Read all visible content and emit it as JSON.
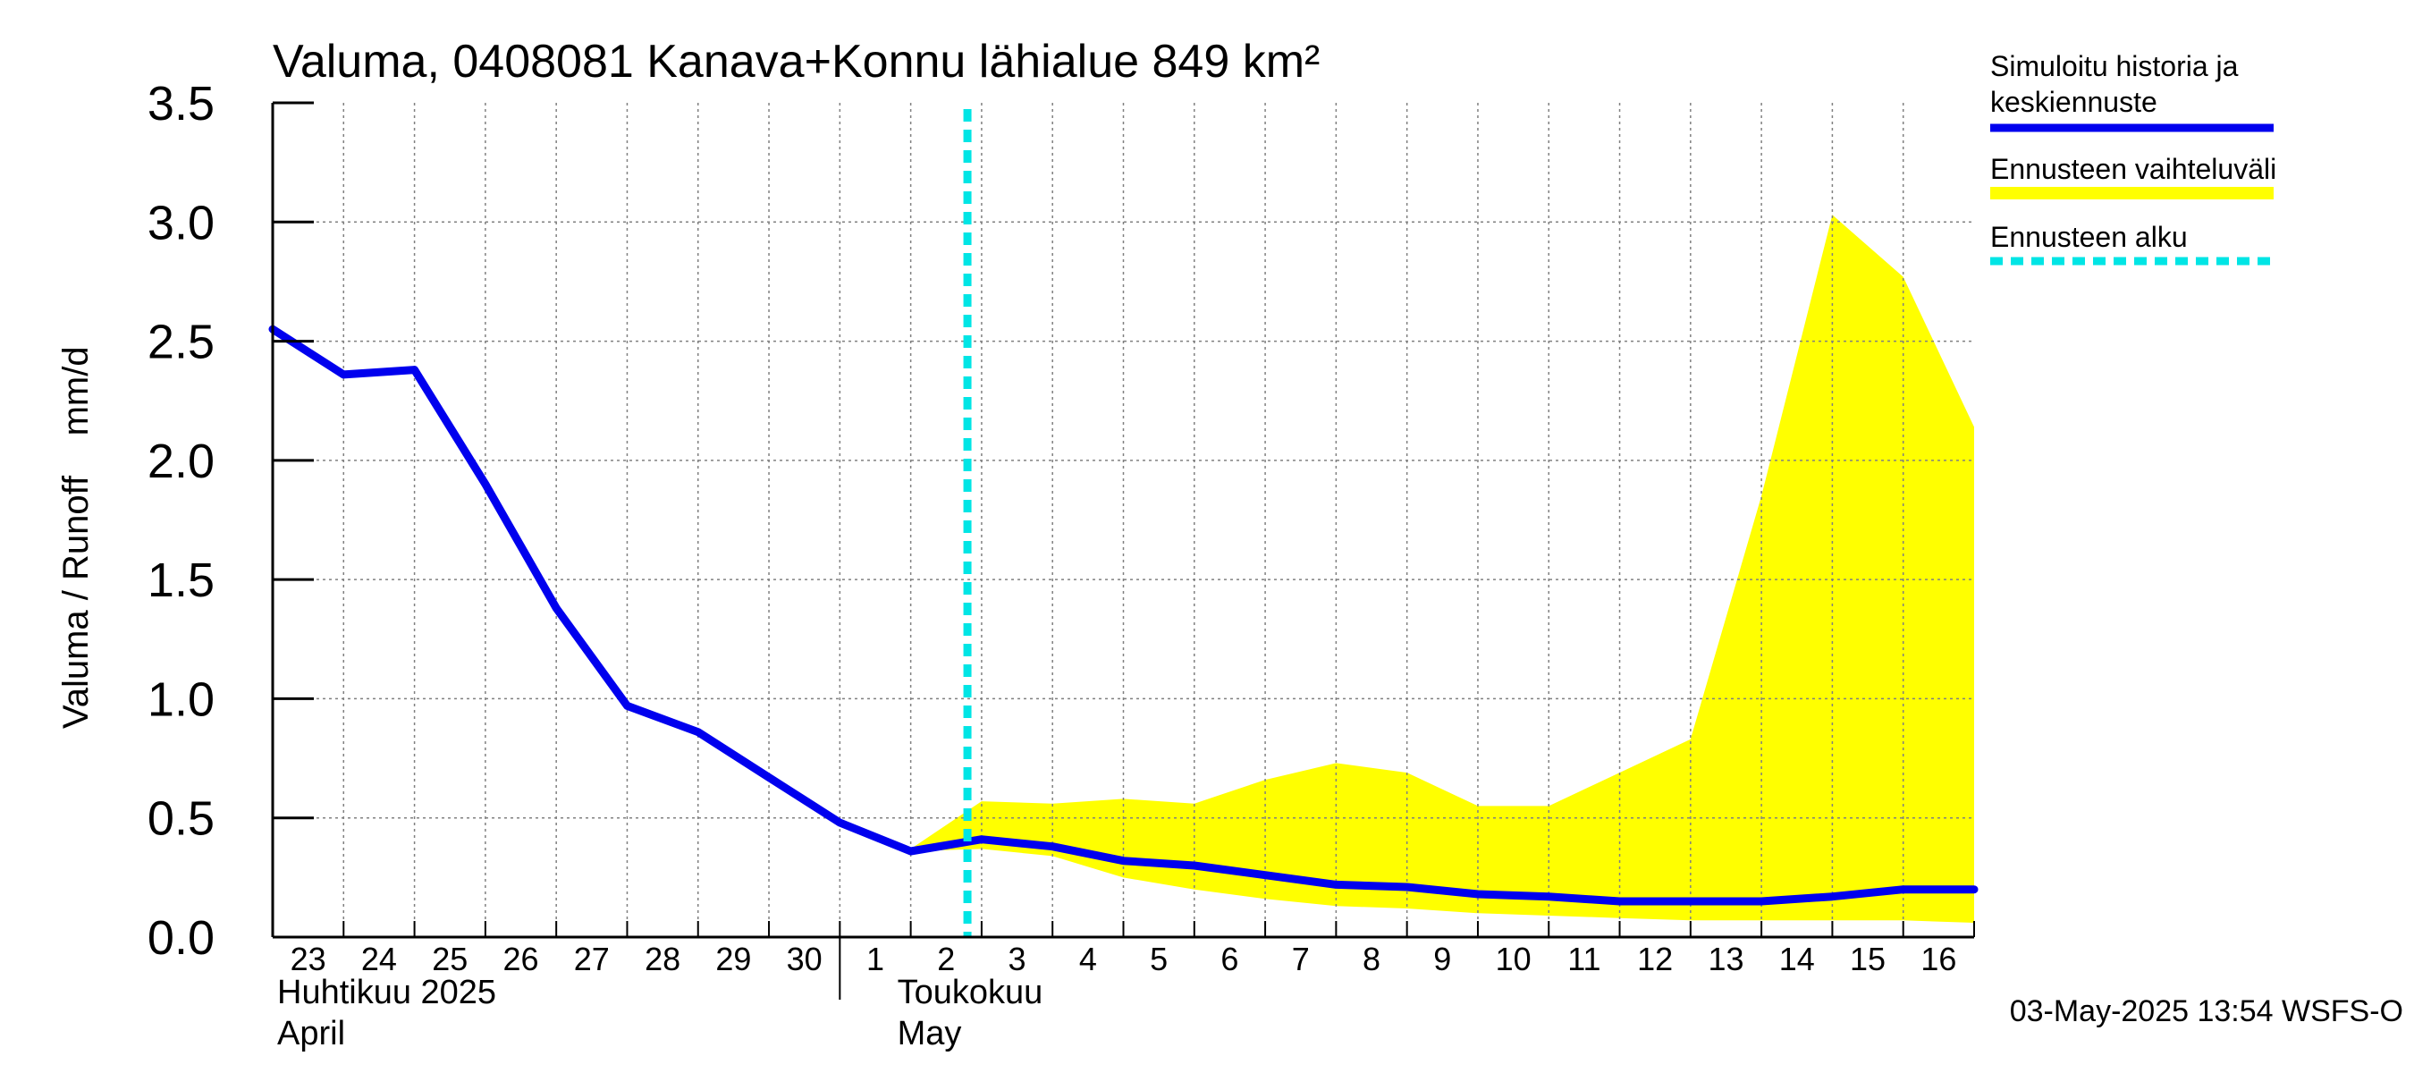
{
  "chart_data": {
    "type": "line",
    "title": "Valuma, 0408081 Kanava+Konnu lähialue 849 km²",
    "ylabel": "Valuma / Runoff    mm/d",
    "ylim": [
      0,
      3.5
    ],
    "yticks": [
      "0.0",
      "0.5",
      "1.0",
      "1.5",
      "2.0",
      "2.5",
      "3.0",
      "3.5"
    ],
    "xlim": [
      "2025-04-23",
      "2025-05-17"
    ],
    "x_tick_labels": [
      "23",
      "24",
      "25",
      "26",
      "27",
      "28",
      "29",
      "30",
      "1",
      "2",
      "3",
      "4",
      "5",
      "6",
      "7",
      "8",
      "9",
      "10",
      "11",
      "12",
      "13",
      "14",
      "15",
      "16"
    ],
    "month_labels": [
      {
        "fi": "Huhtikuu  2025",
        "en": "April"
      },
      {
        "fi": "Toukokuu",
        "en": "May"
      }
    ],
    "grid": true,
    "legend_position": "right",
    "forecast_start": "2025-05-03",
    "series": [
      {
        "name": "Simuloitu historia ja keskiennuste",
        "type": "line",
        "color": "#0000ee",
        "x": [
          "2025-04-23",
          "2025-04-24",
          "2025-04-25",
          "2025-04-26",
          "2025-04-27",
          "2025-04-28",
          "2025-04-29",
          "2025-04-30",
          "2025-05-01",
          "2025-05-02",
          "2025-05-03",
          "2025-05-04",
          "2025-05-05",
          "2025-05-06",
          "2025-05-07",
          "2025-05-08",
          "2025-05-09",
          "2025-05-10",
          "2025-05-11",
          "2025-05-12",
          "2025-05-13",
          "2025-05-14",
          "2025-05-15",
          "2025-05-16",
          "2025-05-17"
        ],
        "values": [
          2.55,
          2.36,
          2.38,
          1.9,
          1.38,
          0.97,
          0.86,
          0.67,
          0.48,
          0.36,
          0.41,
          0.38,
          0.32,
          0.3,
          0.26,
          0.22,
          0.21,
          0.18,
          0.17,
          0.15,
          0.15,
          0.15,
          0.17,
          0.2,
          0.2
        ]
      },
      {
        "name": "Ennusteen vaihteluväli",
        "type": "band",
        "color": "#ffff00",
        "x": [
          "2025-05-02",
          "2025-05-03",
          "2025-05-04",
          "2025-05-05",
          "2025-05-06",
          "2025-05-07",
          "2025-05-08",
          "2025-05-09",
          "2025-05-10",
          "2025-05-11",
          "2025-05-12",
          "2025-05-13",
          "2025-05-14",
          "2025-05-15",
          "2025-05-16",
          "2025-05-17"
        ],
        "upper": [
          0.37,
          0.57,
          0.56,
          0.58,
          0.56,
          0.66,
          0.73,
          0.69,
          0.55,
          0.55,
          0.69,
          0.83,
          1.85,
          3.03,
          2.77,
          2.14
        ],
        "lower": [
          0.36,
          0.37,
          0.34,
          0.25,
          0.2,
          0.16,
          0.13,
          0.12,
          0.1,
          0.09,
          0.08,
          0.07,
          0.07,
          0.07,
          0.07,
          0.06
        ]
      },
      {
        "name": "Ennusteen alku",
        "type": "vline",
        "color": "#00e5e5"
      }
    ],
    "legend": [
      {
        "label": "Simuloitu historia ja keskiennuste",
        "color": "#0000ee",
        "style": "solid"
      },
      {
        "label": "Ennusteen vaihteluväli",
        "color": "#ffff00",
        "style": "solid"
      },
      {
        "label": "Ennusteen alku",
        "color": "#00e5e5",
        "style": "dashed"
      }
    ],
    "footer": "03-May-2025 13:54 WSFS-O"
  }
}
